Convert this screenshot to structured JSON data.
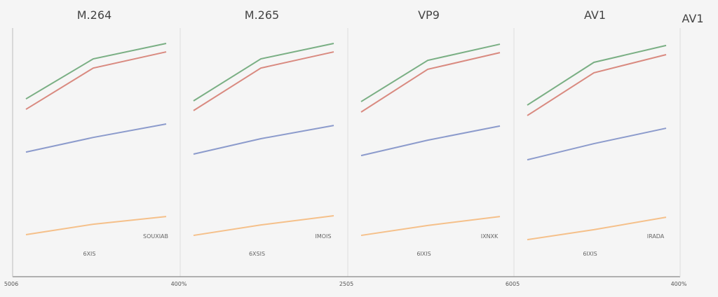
{
  "chart_data": {
    "type": "line",
    "grid": false,
    "extra_label": "AV1",
    "x_tick_labels": [
      "5006",
      "400%",
      "2505",
      "6005",
      "400%"
    ],
    "ylim": [
      0,
      100
    ],
    "series_colors": [
      "#7aaf84",
      "#d98a80",
      "#8c9bcc",
      "#f5c08a"
    ],
    "panels": [
      {
        "title": "M.264",
        "label_right": "SOUXIAB",
        "label_center": "6XIS",
        "series": [
          {
            "values": [
              71.5,
              87.6,
              93.8
            ]
          },
          {
            "values": [
              67.3,
              83.9,
              90.4
            ]
          },
          {
            "values": [
              50.1,
              56.0,
              61.4
            ]
          },
          {
            "values": [
              16.9,
              21.1,
              24.2
            ]
          }
        ]
      },
      {
        "title": "M.265",
        "label_right": "IMOIS",
        "label_center": "6XSIS",
        "series": [
          {
            "values": [
              70.7,
              87.6,
              93.8
            ]
          },
          {
            "values": [
              66.8,
              83.9,
              90.4
            ]
          },
          {
            "values": [
              49.3,
              55.5,
              60.8
            ]
          },
          {
            "values": [
              16.6,
              20.8,
              24.5
            ]
          }
        ]
      },
      {
        "title": "VP9",
        "label_right": "IXNXK",
        "label_center": "6IXIS",
        "series": [
          {
            "values": [
              70.4,
              87.0,
              93.5
            ]
          },
          {
            "values": [
              66.2,
              83.4,
              90.1
            ]
          },
          {
            "values": [
              48.7,
              54.9,
              60.6
            ]
          },
          {
            "values": [
              16.6,
              20.6,
              24.2
            ]
          }
        ]
      },
      {
        "title": "AV1",
        "label_right": "IRADA",
        "label_center": "6IXIS",
        "series": [
          {
            "values": [
              69.0,
              86.2,
              93.0
            ]
          },
          {
            "values": [
              64.8,
              82.0,
              89.3
            ]
          },
          {
            "values": [
              47.0,
              53.5,
              59.7
            ]
          },
          {
            "values": [
              14.9,
              18.9,
              23.9
            ]
          }
        ]
      }
    ]
  }
}
